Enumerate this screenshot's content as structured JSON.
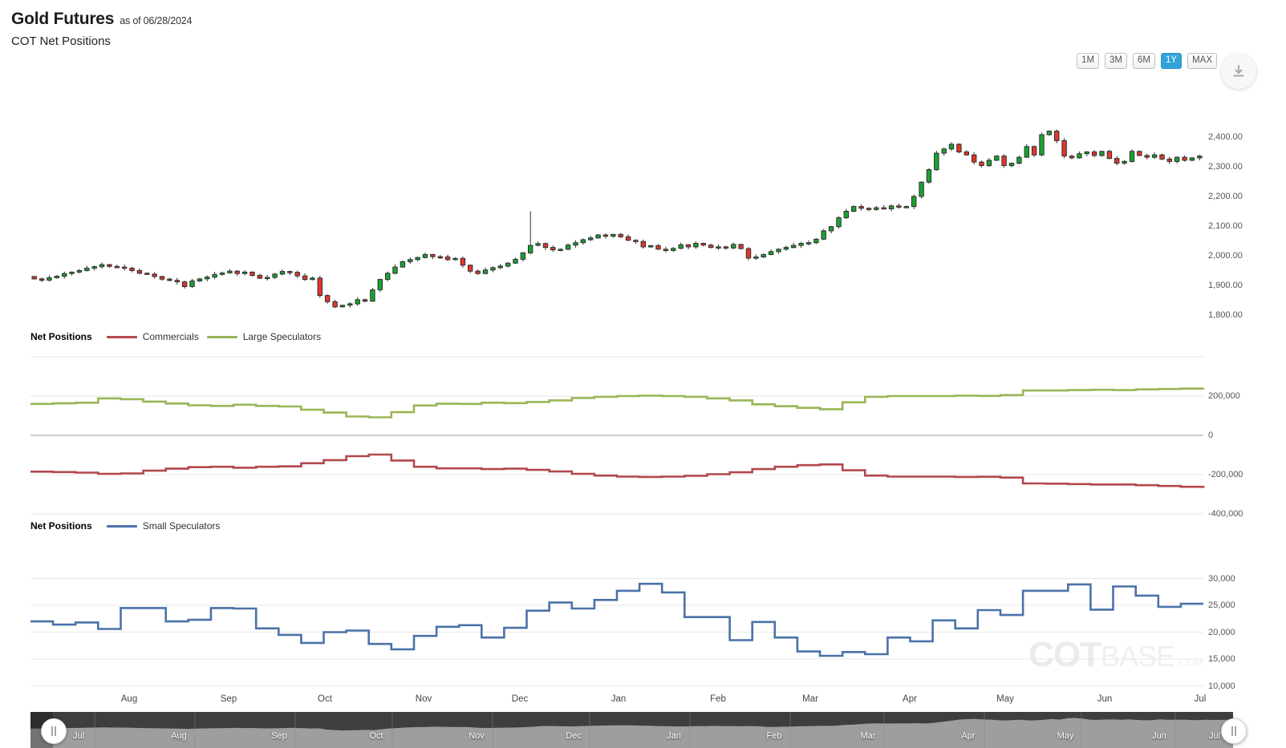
{
  "header": {
    "title": "Gold Futures",
    "as_of": "as of 06/28/2024",
    "subtitle": "COT Net Positions"
  },
  "toolbar": {
    "range_buttons": [
      {
        "label": "1M",
        "active": false
      },
      {
        "label": "3M",
        "active": false
      },
      {
        "label": "6M",
        "active": false
      },
      {
        "label": "1Y",
        "active": true
      },
      {
        "label": "MAX",
        "active": false
      }
    ],
    "active_color": "#33a3da",
    "download_icon": "download-arrow"
  },
  "colors": {
    "candle_up": "#18a42f",
    "candle_down": "#e5352b",
    "candle_border": "#2e2e2e",
    "commercials": "#b2484d",
    "large_speculators": "#9ab556",
    "small_speculators": "#4a72a8",
    "grid": "#e7e7e7",
    "zero_line": "#9b9b9b",
    "nav_dark": "#3e3e3e",
    "nav_light": "#9e9e9e"
  },
  "axes": {
    "price_ticks": [
      "2,400.00",
      "2,300.00",
      "2,200.00",
      "2,100.00",
      "2,000.00",
      "1,900.00",
      "1,800.00"
    ],
    "net_ticks": [
      "200,000",
      "0",
      "-200,000",
      "-400,000"
    ],
    "small_ticks": [
      "30,000",
      "25,000",
      "20,000",
      "15,000",
      "10,000"
    ],
    "months": [
      "Aug",
      "Sep",
      "Oct",
      "Nov",
      "Dec",
      "Jan",
      "Feb",
      "Mar",
      "Apr",
      "May",
      "Jun",
      "Jul"
    ],
    "nav_months": [
      "Jul",
      "Aug",
      "Sep",
      "Oct",
      "Nov",
      "Dec",
      "Jan",
      "Feb",
      "Mar",
      "Apr",
      "May",
      "Jun",
      "Jul"
    ]
  },
  "panels": {
    "net1": {
      "legend_title": "Net Positions",
      "series": [
        {
          "name": "Commercials",
          "color": "#b2484d"
        },
        {
          "name": "Large Speculators",
          "color": "#9ab556"
        }
      ]
    },
    "net2": {
      "legend_title": "Net Positions",
      "series": [
        {
          "name": "Small Speculators",
          "color": "#4a72a8"
        }
      ]
    }
  },
  "watermark": {
    "cot": "COT",
    "base": "BASE",
    "com": ".COM"
  },
  "chart_data": [
    {
      "type": "candlestick",
      "title": "Gold Futures price, 1Y daily as of 06/28/2024",
      "x_range": [
        "Jul 2023",
        "Jul 2024"
      ],
      "ylim": [
        1800,
        2450
      ],
      "y_ticks": [
        2400,
        2300,
        2200,
        2100,
        2000,
        1900,
        1800
      ],
      "closes": [
        1922,
        1918,
        1926,
        1931,
        1940,
        1945,
        1950,
        1958,
        1963,
        1970,
        1964,
        1962,
        1958,
        1950,
        1941,
        1938,
        1930,
        1921,
        1917,
        1912,
        1896,
        1915,
        1922,
        1928,
        1937,
        1942,
        1948,
        1940,
        1945,
        1934,
        1924,
        1927,
        1938,
        1947,
        1944,
        1932,
        1920,
        1925,
        1866,
        1845,
        1828,
        1833,
        1838,
        1852,
        1847,
        1885,
        1920,
        1941,
        1962,
        1980,
        1987,
        1994,
        2004,
        1997,
        1996,
        1987,
        1991,
        1968,
        1948,
        1940,
        1952,
        1960,
        1965,
        1975,
        1988,
        2010,
        2035,
        2041,
        2028,
        2020,
        2022,
        2036,
        2044,
        2054,
        2060,
        2070,
        2066,
        2072,
        2064,
        2052,
        2048,
        2030,
        2034,
        2022,
        2018,
        2025,
        2037,
        2030,
        2042,
        2036,
        2028,
        2030,
        2026,
        2038,
        2024,
        1992,
        1996,
        2004,
        2014,
        2022,
        2028,
        2035,
        2042,
        2044,
        2056,
        2084,
        2098,
        2128,
        2150,
        2166,
        2160,
        2156,
        2162,
        2158,
        2168,
        2164,
        2166,
        2200,
        2248,
        2290,
        2346,
        2360,
        2376,
        2350,
        2340,
        2316,
        2304,
        2322,
        2336,
        2304,
        2312,
        2332,
        2368,
        2340,
        2408,
        2420,
        2388,
        2336,
        2330,
        2344,
        2350,
        2338,
        2352,
        2328,
        2312,
        2318,
        2352,
        2338,
        2332,
        2340,
        2326,
        2318,
        2332,
        2322,
        2330,
        2336
      ],
      "spike": {
        "index": 66,
        "high": 2150
      }
    },
    {
      "type": "line",
      "mode": "step",
      "title": "Net Positions - Commercials and Large Speculators (weekly)",
      "ylim": [
        -400000,
        400000
      ],
      "y_ticks": [
        200000,
        0,
        -200000,
        -400000
      ],
      "series": [
        {
          "name": "Commercials",
          "color": "#b2484d",
          "values": [
            -185000,
            -187000,
            -190000,
            -196000,
            -194000,
            -180000,
            -170000,
            -162000,
            -160000,
            -165000,
            -160000,
            -158000,
            -142000,
            -126000,
            -106000,
            -98000,
            -128000,
            -160000,
            -168000,
            -168000,
            -172000,
            -170000,
            -176000,
            -184000,
            -196000,
            -205000,
            -210000,
            -212000,
            -210000,
            -206000,
            -198000,
            -188000,
            -172000,
            -160000,
            -152000,
            -148000,
            -178000,
            -205000,
            -210000,
            -210000,
            -210000,
            -212000,
            -211000,
            -215000,
            -245000,
            -246000,
            -248000,
            -250000,
            -250000,
            -254000,
            -258000,
            -262000,
            -268000
          ]
        },
        {
          "name": "Large Speculators",
          "color": "#9ab556",
          "values": [
            160000,
            163000,
            166000,
            188000,
            184000,
            172000,
            162000,
            153000,
            150000,
            156000,
            150000,
            147000,
            130000,
            116000,
            96000,
            92000,
            118000,
            152000,
            161000,
            160000,
            166000,
            164000,
            170000,
            178000,
            190000,
            196000,
            200000,
            202000,
            200000,
            196000,
            188000,
            178000,
            158000,
            148000,
            140000,
            133000,
            168000,
            196000,
            200000,
            200000,
            200000,
            202000,
            201000,
            205000,
            228000,
            228000,
            230000,
            232000,
            230000,
            234000,
            236000,
            238000,
            240000
          ]
        }
      ]
    },
    {
      "type": "line",
      "mode": "step",
      "title": "Net Positions - Small Speculators (weekly)",
      "ylim": [
        10000,
        30000
      ],
      "y_ticks": [
        30000,
        25000,
        20000,
        15000,
        10000
      ],
      "series": [
        {
          "name": "Small Speculators",
          "color": "#4a72a8",
          "values": [
            22000,
            21400,
            21800,
            20600,
            24500,
            24500,
            22000,
            22300,
            24500,
            24400,
            20700,
            19500,
            18000,
            20000,
            20300,
            17800,
            16800,
            19300,
            21000,
            21300,
            19000,
            20800,
            24000,
            25500,
            24400,
            26000,
            27700,
            29000,
            27400,
            22800,
            22800,
            18500,
            21900,
            19000,
            16400,
            15600,
            16300,
            15900,
            19000,
            18300,
            22200,
            20700,
            24100,
            23200,
            27700,
            27700,
            28900,
            24200,
            28500,
            26800,
            24700,
            25300,
            25300
          ]
        }
      ]
    }
  ]
}
